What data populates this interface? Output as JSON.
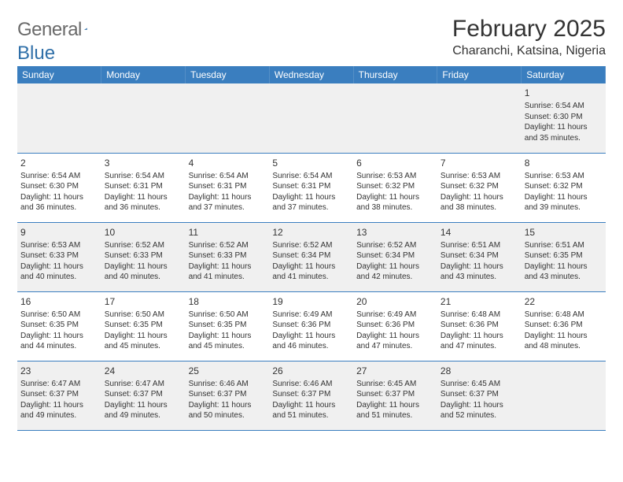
{
  "brand": {
    "part1": "General",
    "part2": "Blue"
  },
  "colors": {
    "header_bg": "#3a7ebf",
    "alt_row": "#f0f0f0",
    "logo_gray": "#6a6a6a",
    "logo_blue": "#2f6fa8",
    "text": "#333333",
    "white": "#ffffff"
  },
  "title": "February 2025",
  "location": "Charanchi, Katsina, Nigeria",
  "weekdays": [
    "Sunday",
    "Monday",
    "Tuesday",
    "Wednesday",
    "Thursday",
    "Friday",
    "Saturday"
  ],
  "rows": [
    [
      null,
      null,
      null,
      null,
      null,
      null,
      {
        "d": "1",
        "sr": "Sunrise: 6:54 AM",
        "ss": "Sunset: 6:30 PM",
        "dl": "Daylight: 11 hours and 35 minutes."
      }
    ],
    [
      {
        "d": "2",
        "sr": "Sunrise: 6:54 AM",
        "ss": "Sunset: 6:30 PM",
        "dl": "Daylight: 11 hours and 36 minutes."
      },
      {
        "d": "3",
        "sr": "Sunrise: 6:54 AM",
        "ss": "Sunset: 6:31 PM",
        "dl": "Daylight: 11 hours and 36 minutes."
      },
      {
        "d": "4",
        "sr": "Sunrise: 6:54 AM",
        "ss": "Sunset: 6:31 PM",
        "dl": "Daylight: 11 hours and 37 minutes."
      },
      {
        "d": "5",
        "sr": "Sunrise: 6:54 AM",
        "ss": "Sunset: 6:31 PM",
        "dl": "Daylight: 11 hours and 37 minutes."
      },
      {
        "d": "6",
        "sr": "Sunrise: 6:53 AM",
        "ss": "Sunset: 6:32 PM",
        "dl": "Daylight: 11 hours and 38 minutes."
      },
      {
        "d": "7",
        "sr": "Sunrise: 6:53 AM",
        "ss": "Sunset: 6:32 PM",
        "dl": "Daylight: 11 hours and 38 minutes."
      },
      {
        "d": "8",
        "sr": "Sunrise: 6:53 AM",
        "ss": "Sunset: 6:32 PM",
        "dl": "Daylight: 11 hours and 39 minutes."
      }
    ],
    [
      {
        "d": "9",
        "sr": "Sunrise: 6:53 AM",
        "ss": "Sunset: 6:33 PM",
        "dl": "Daylight: 11 hours and 40 minutes."
      },
      {
        "d": "10",
        "sr": "Sunrise: 6:52 AM",
        "ss": "Sunset: 6:33 PM",
        "dl": "Daylight: 11 hours and 40 minutes."
      },
      {
        "d": "11",
        "sr": "Sunrise: 6:52 AM",
        "ss": "Sunset: 6:33 PM",
        "dl": "Daylight: 11 hours and 41 minutes."
      },
      {
        "d": "12",
        "sr": "Sunrise: 6:52 AM",
        "ss": "Sunset: 6:34 PM",
        "dl": "Daylight: 11 hours and 41 minutes."
      },
      {
        "d": "13",
        "sr": "Sunrise: 6:52 AM",
        "ss": "Sunset: 6:34 PM",
        "dl": "Daylight: 11 hours and 42 minutes."
      },
      {
        "d": "14",
        "sr": "Sunrise: 6:51 AM",
        "ss": "Sunset: 6:34 PM",
        "dl": "Daylight: 11 hours and 43 minutes."
      },
      {
        "d": "15",
        "sr": "Sunrise: 6:51 AM",
        "ss": "Sunset: 6:35 PM",
        "dl": "Daylight: 11 hours and 43 minutes."
      }
    ],
    [
      {
        "d": "16",
        "sr": "Sunrise: 6:50 AM",
        "ss": "Sunset: 6:35 PM",
        "dl": "Daylight: 11 hours and 44 minutes."
      },
      {
        "d": "17",
        "sr": "Sunrise: 6:50 AM",
        "ss": "Sunset: 6:35 PM",
        "dl": "Daylight: 11 hours and 45 minutes."
      },
      {
        "d": "18",
        "sr": "Sunrise: 6:50 AM",
        "ss": "Sunset: 6:35 PM",
        "dl": "Daylight: 11 hours and 45 minutes."
      },
      {
        "d": "19",
        "sr": "Sunrise: 6:49 AM",
        "ss": "Sunset: 6:36 PM",
        "dl": "Daylight: 11 hours and 46 minutes."
      },
      {
        "d": "20",
        "sr": "Sunrise: 6:49 AM",
        "ss": "Sunset: 6:36 PM",
        "dl": "Daylight: 11 hours and 47 minutes."
      },
      {
        "d": "21",
        "sr": "Sunrise: 6:48 AM",
        "ss": "Sunset: 6:36 PM",
        "dl": "Daylight: 11 hours and 47 minutes."
      },
      {
        "d": "22",
        "sr": "Sunrise: 6:48 AM",
        "ss": "Sunset: 6:36 PM",
        "dl": "Daylight: 11 hours and 48 minutes."
      }
    ],
    [
      {
        "d": "23",
        "sr": "Sunrise: 6:47 AM",
        "ss": "Sunset: 6:37 PM",
        "dl": "Daylight: 11 hours and 49 minutes."
      },
      {
        "d": "24",
        "sr": "Sunrise: 6:47 AM",
        "ss": "Sunset: 6:37 PM",
        "dl": "Daylight: 11 hours and 49 minutes."
      },
      {
        "d": "25",
        "sr": "Sunrise: 6:46 AM",
        "ss": "Sunset: 6:37 PM",
        "dl": "Daylight: 11 hours and 50 minutes."
      },
      {
        "d": "26",
        "sr": "Sunrise: 6:46 AM",
        "ss": "Sunset: 6:37 PM",
        "dl": "Daylight: 11 hours and 51 minutes."
      },
      {
        "d": "27",
        "sr": "Sunrise: 6:45 AM",
        "ss": "Sunset: 6:37 PM",
        "dl": "Daylight: 11 hours and 51 minutes."
      },
      {
        "d": "28",
        "sr": "Sunrise: 6:45 AM",
        "ss": "Sunset: 6:37 PM",
        "dl": "Daylight: 11 hours and 52 minutes."
      },
      null
    ]
  ]
}
